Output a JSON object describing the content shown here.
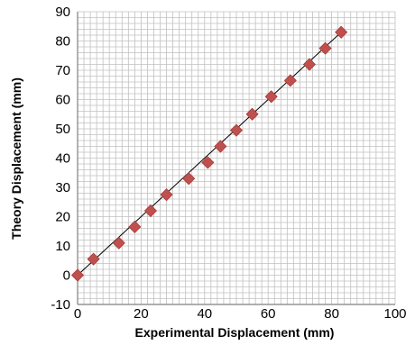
{
  "chart_data": {
    "type": "scatter",
    "title": "",
    "xlabel": "Experimental Displacement (mm)",
    "ylabel": "Theory Displacement (mm)",
    "xlim": [
      0,
      100
    ],
    "ylim": [
      -10,
      90
    ],
    "x_major_ticks": [
      0,
      20,
      40,
      60,
      80,
      100
    ],
    "y_major_ticks": [
      -10,
      0,
      10,
      20,
      30,
      40,
      50,
      60,
      70,
      80,
      90
    ],
    "x_minor_step": 2,
    "y_minor_step": 2,
    "grid": true,
    "legend": "none",
    "series": [
      {
        "marker": "diamond",
        "color": "#c0504d",
        "x": [
          0,
          5,
          13,
          18,
          23,
          28,
          35,
          41,
          45,
          50,
          55,
          61,
          67,
          73,
          78,
          83
        ],
        "y": [
          0,
          5.5,
          11,
          16.5,
          22,
          27.5,
          33,
          38.5,
          44,
          49.5,
          55,
          61,
          66.5,
          72,
          77.5,
          83
        ]
      }
    ],
    "trendline": {
      "color": "#000000",
      "x": [
        0,
        83
      ],
      "y": [
        0,
        83
      ]
    },
    "colors": {
      "grid": "#c0c0c0",
      "axis": "#808080"
    }
  }
}
